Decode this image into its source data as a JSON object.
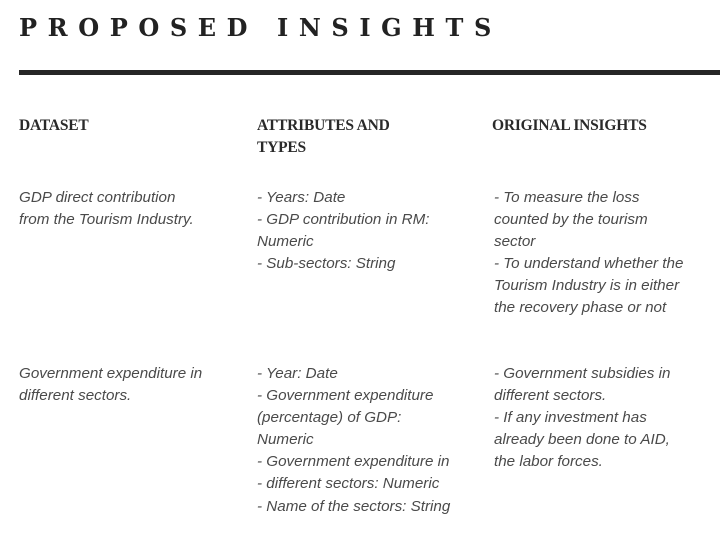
{
  "title": "PROPOSED INSIGHTS",
  "headers": {
    "dataset": "DATASET",
    "attributes": "ATTRIBUTES AND\nTYPES",
    "insights": "ORIGINAL INSIGHTS"
  },
  "rows": [
    {
      "dataset": "GDP direct contribution\nfrom the Tourism Industry.",
      "attributes": "- Years: Date\n- GDP contribution in RM:\nNumeric\n- Sub-sectors: String",
      "insights": "- To measure the loss\ncounted by the tourism\nsector\n- To understand whether the\nTourism Industry is in either\nthe recovery phase or not"
    },
    {
      "dataset": "Government expenditure in\ndifferent sectors.",
      "attributes": "- Year: Date\n- Government expenditure\n(percentage) of GDP:\nNumeric\n- Government expenditure in\n- different sectors: Numeric\n- Name of the sectors: String",
      "insights": "- Government subsidies in\ndifferent sectors.\n- If any investment has\nalready been done to AID,\nthe labor forces."
    }
  ]
}
